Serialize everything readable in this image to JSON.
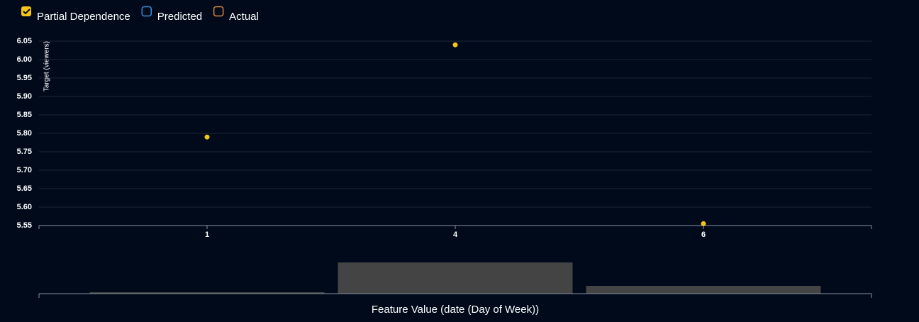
{
  "chart_data": {
    "type": "scatter",
    "y_label": "Target (viewers)",
    "x_label": "Feature Value (date (Day of Week))",
    "categories": [
      "1",
      "4",
      "6"
    ],
    "series": [
      {
        "name": "Partial Dependence",
        "color": "#f5c518",
        "values": [
          5.79,
          6.04,
          5.555
        ]
      },
      {
        "name": "Predicted",
        "color": "#3b8fd9",
        "values": [
          null,
          null,
          null
        ]
      },
      {
        "name": "Actual",
        "color": "#d9843b",
        "values": [
          null,
          null,
          null
        ]
      }
    ],
    "ylim": [
      5.55,
      6.05
    ],
    "yticks": [
      5.55,
      {
        "value": 5.6,
        "label": "5.60"
      },
      5.65,
      {
        "value": 5.7,
        "label": "5.70"
      },
      5.75,
      {
        "value": 5.8,
        "label": "5.80"
      },
      5.85,
      {
        "value": 5.9,
        "label": "5.90"
      },
      5.95,
      {
        "value": 6.0,
        "label": "6.00"
      },
      6.05
    ],
    "grid": true,
    "histogram": {
      "color": "#444444",
      "values": [
        2,
        44,
        11
      ]
    }
  }
}
